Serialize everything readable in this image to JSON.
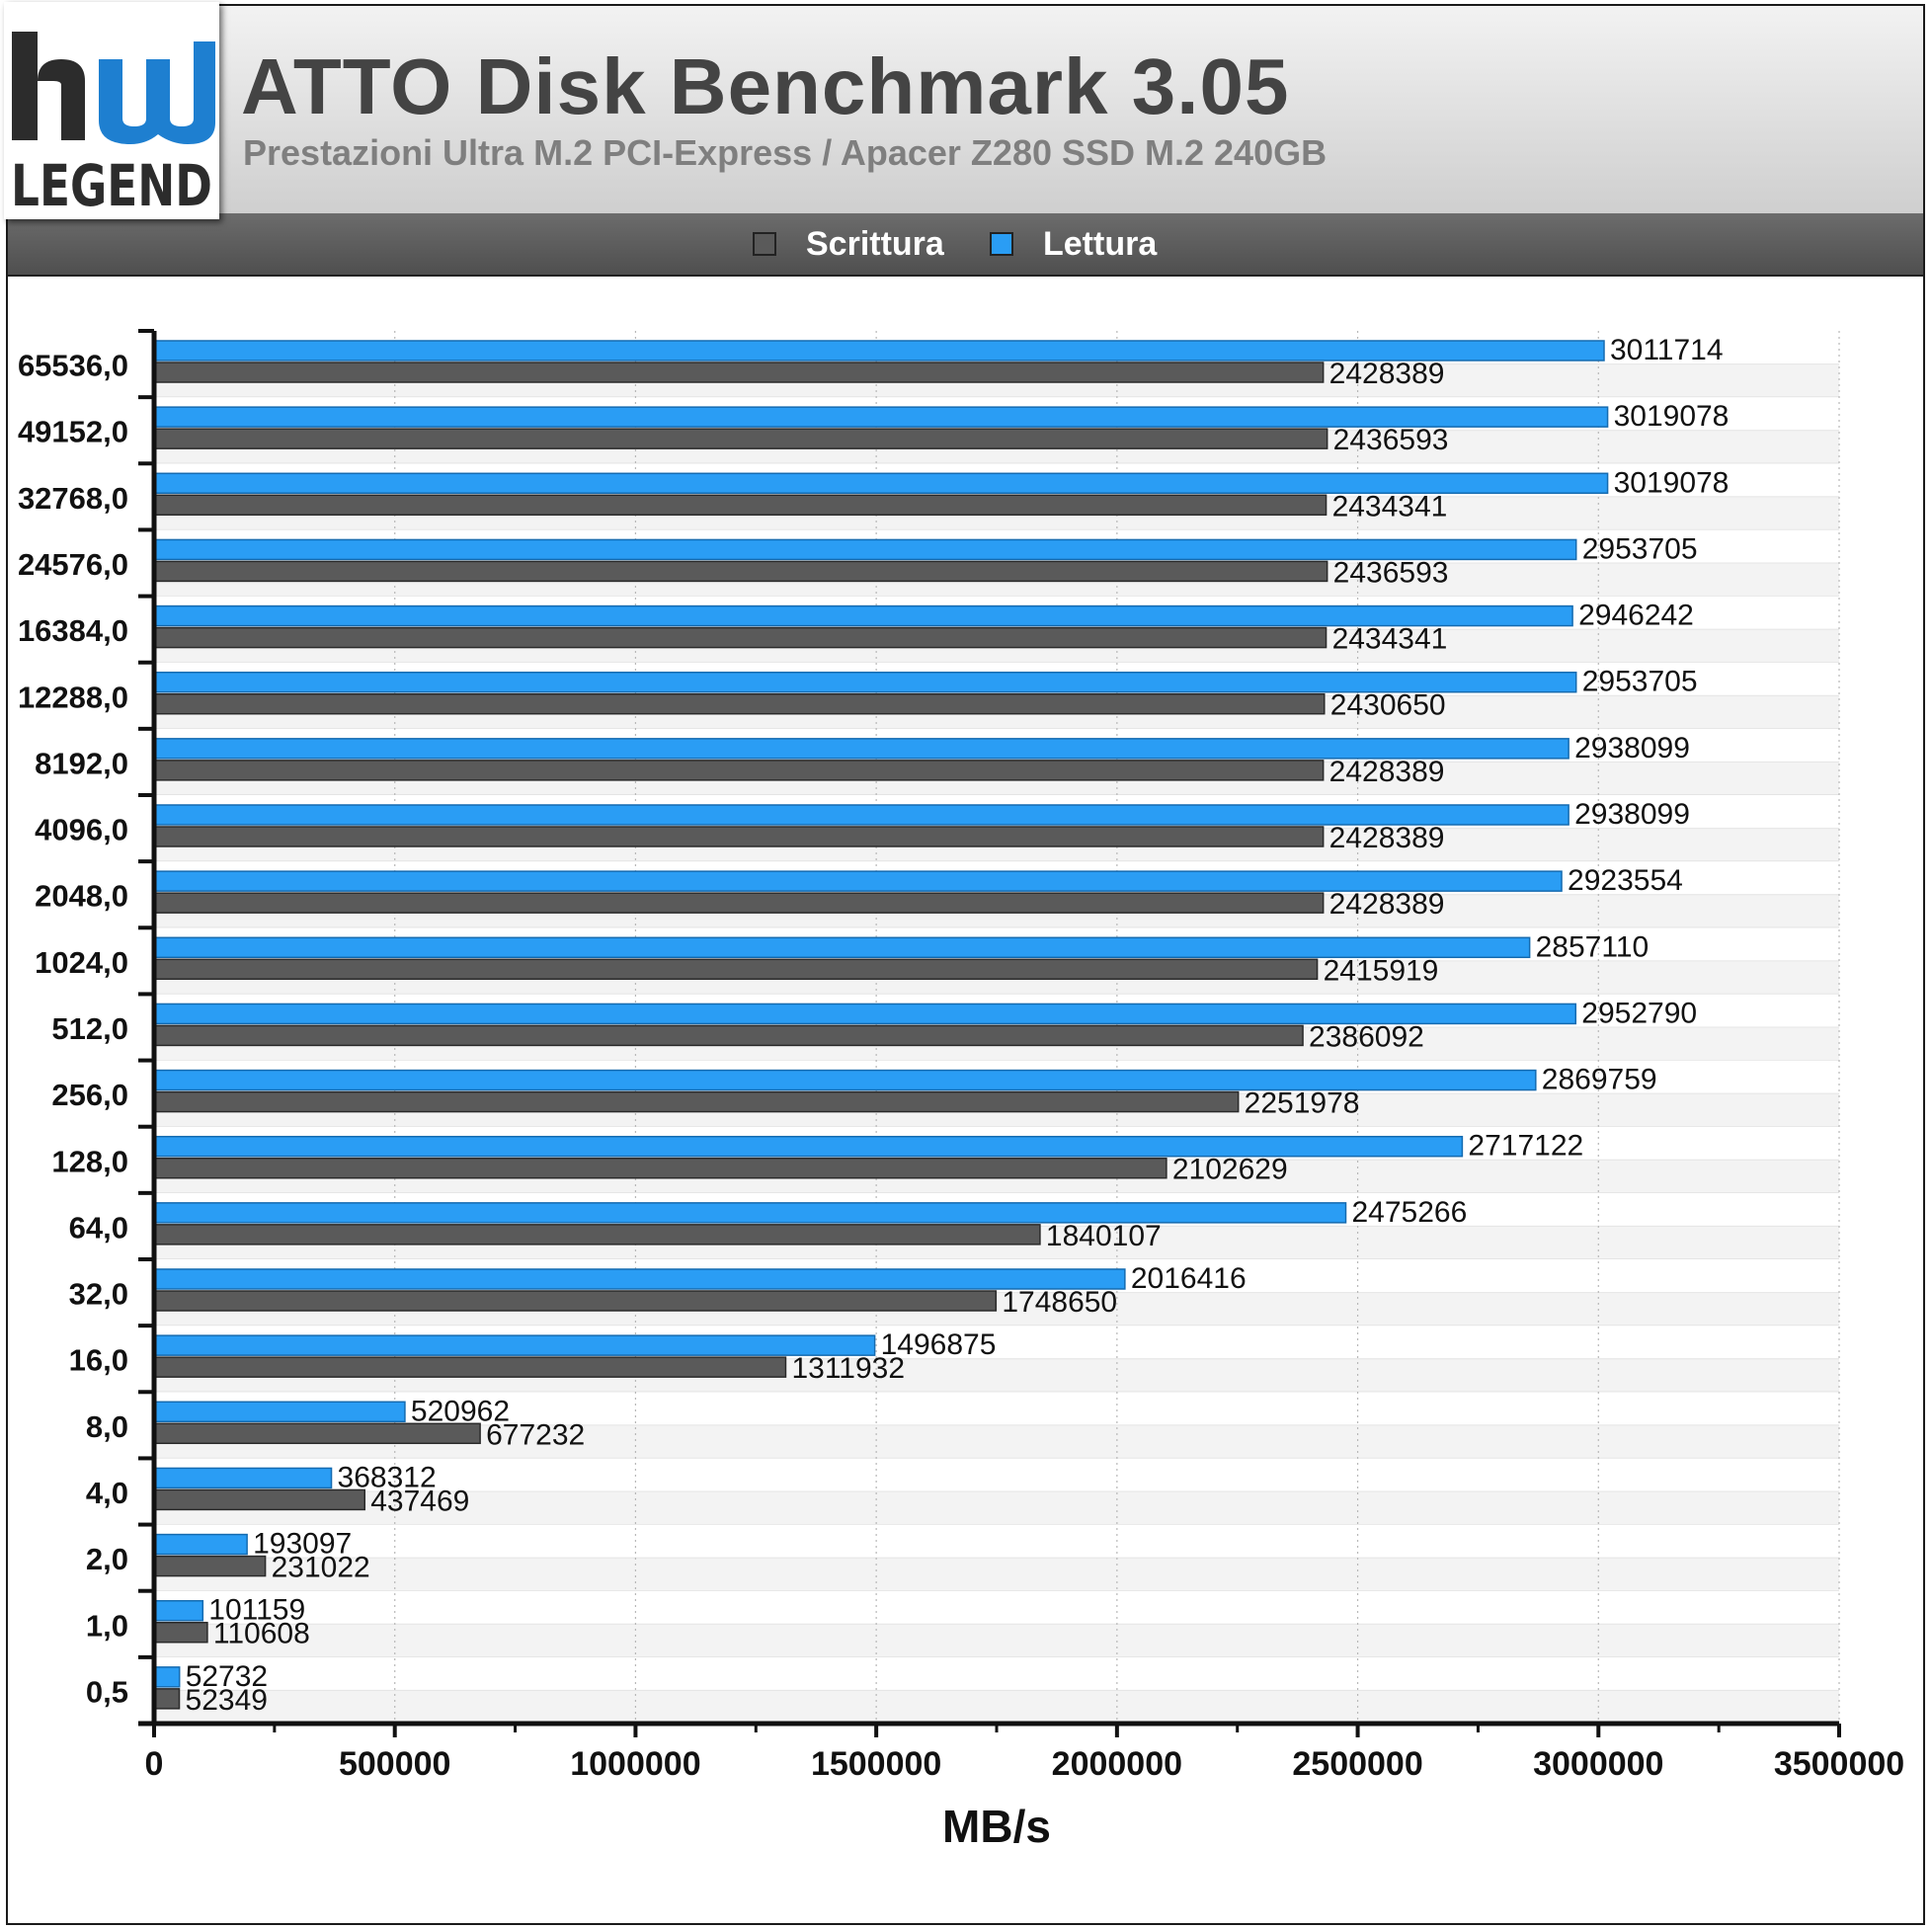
{
  "header": {
    "title": "ATTO Disk Benchmark 3.05",
    "subtitle": "Prestazioni Ultra M.2 PCI-Express / Apacer Z280 SSD M.2 240GB",
    "logo_text": "hwLEGEND"
  },
  "colors": {
    "write": "#5a5a5a",
    "read": "#2a9df4",
    "background": "#ffffff",
    "alt_band": "#f3f3f3"
  },
  "legend": {
    "write_label": "Scrittura",
    "read_label": "Lettura"
  },
  "chart_data": {
    "type": "bar",
    "orientation": "horizontal",
    "title": "ATTO Disk Benchmark 3.05",
    "subtitle": "Prestazioni Ultra M.2 PCI-Express / Apacer Z280 SSD M.2 240GB",
    "xlabel": "MB/s",
    "ylabel": "",
    "xlim": [
      0,
      3500000
    ],
    "xticks": [
      "0",
      "500000",
      "1000000",
      "1500000",
      "2000000",
      "2500000",
      "3000000",
      "3500000"
    ],
    "grid": "vertical dotted",
    "legend_position": "top",
    "categories": [
      "65536,0",
      "49152,0",
      "32768,0",
      "24576,0",
      "16384,0",
      "12288,0",
      "8192,0",
      "4096,0",
      "2048,0",
      "1024,0",
      "512,0",
      "256,0",
      "128,0",
      "64,0",
      "32,0",
      "16,0",
      "8,0",
      "4,0",
      "2,0",
      "1,0",
      "0,5"
    ],
    "series": [
      {
        "name": "Lettura",
        "values": [
          3011714,
          3019078,
          3019078,
          2953705,
          2946242,
          2953705,
          2938099,
          2938099,
          2923554,
          2857110,
          2952790,
          2869759,
          2717122,
          2475266,
          2016416,
          1496875,
          520962,
          368312,
          193097,
          101159,
          52732
        ]
      },
      {
        "name": "Scrittura",
        "values": [
          2428389,
          2436593,
          2434341,
          2436593,
          2434341,
          2430650,
          2428389,
          2428389,
          2428389,
          2415919,
          2386092,
          2251978,
          2102629,
          1840107,
          1748650,
          1311932,
          677232,
          437469,
          231022,
          110608,
          52349
        ]
      }
    ]
  }
}
